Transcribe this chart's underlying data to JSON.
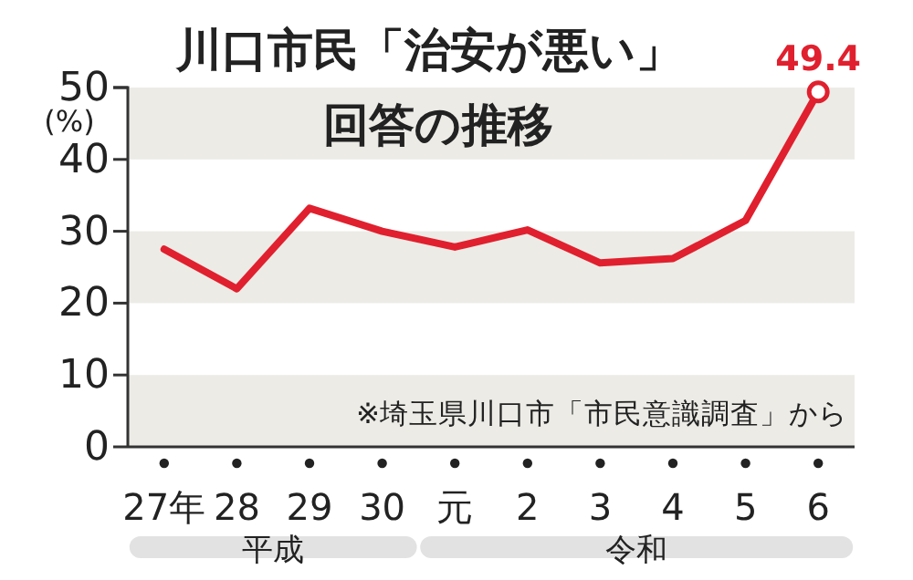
{
  "chart_data": {
    "type": "line",
    "title": "川口市民「治安が悪い」",
    "subtitle": "回答の推移",
    "ylabel": "(%)",
    "categories": [
      "27年",
      "28",
      "29",
      "30",
      "元",
      "2",
      "3",
      "4",
      "5",
      "6"
    ],
    "series": [
      {
        "color": "#e0202e",
        "values": [
          27.5,
          22.0,
          33.2,
          30.0,
          27.8,
          30.2,
          25.6,
          26.2,
          31.5,
          49.4
        ],
        "value_labels": [
          null,
          null,
          null,
          null,
          null,
          null,
          null,
          null,
          null,
          "49.4"
        ]
      }
    ],
    "ylim": [
      0,
      50
    ],
    "yticks": [
      0,
      10,
      20,
      30,
      40,
      50
    ],
    "bands": [
      {
        "axis": "y",
        "from": 0,
        "to": 10,
        "color": "#ecebe6"
      },
      {
        "axis": "y",
        "from": 20,
        "to": 30,
        "color": "#ecebe6"
      },
      {
        "axis": "y",
        "from": 40,
        "to": 50,
        "color": "#ecebe6"
      }
    ],
    "annotations": [
      "※埼玉県川口市「市民意識調査」から",
      "平成",
      "令和"
    ]
  }
}
